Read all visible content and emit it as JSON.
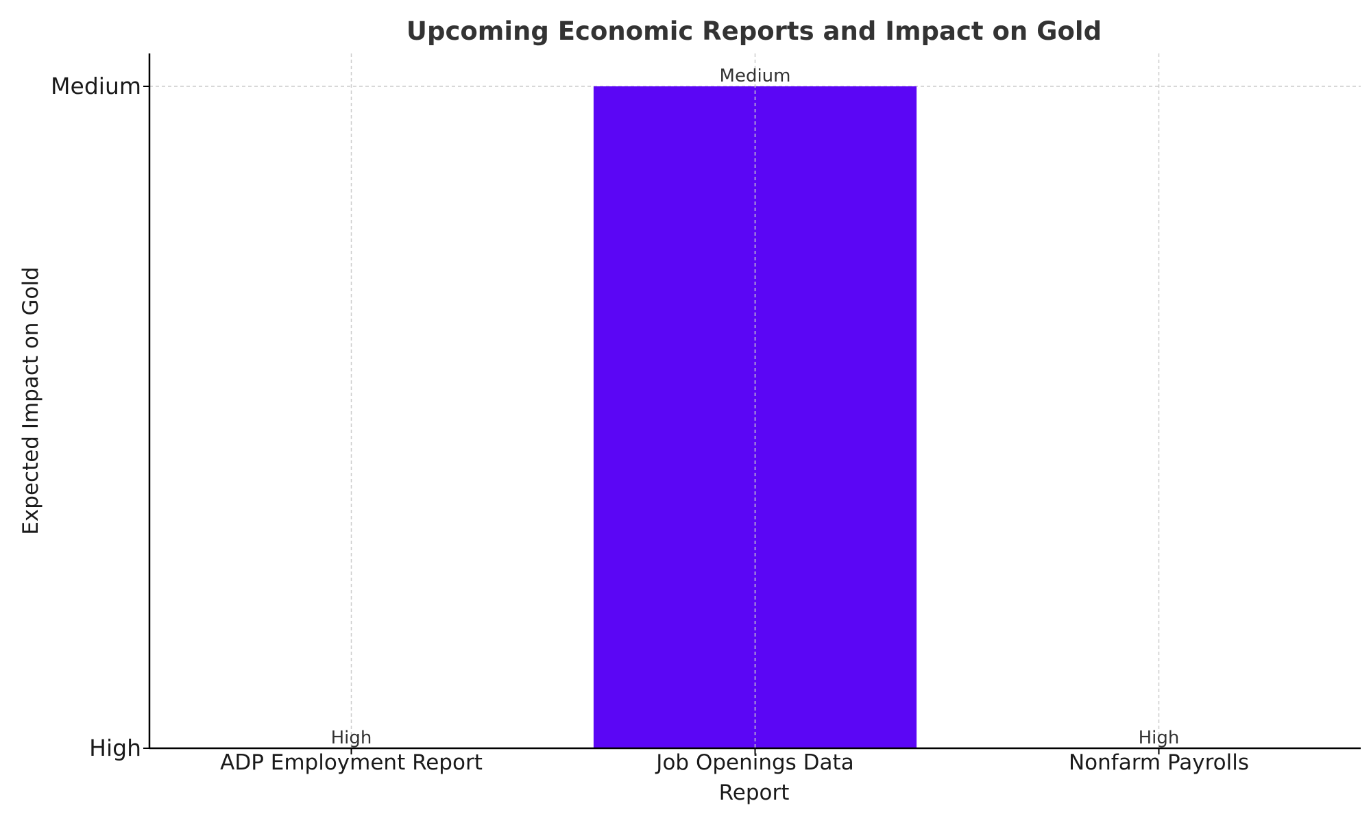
{
  "chart_data": {
    "type": "bar",
    "title": "Upcoming Economic Reports and Impact on Gold",
    "xlabel": "Report",
    "ylabel": "Expected Impact on Gold",
    "categories": [
      "ADP Employment Report",
      "Job Openings Data",
      "Nonfarm Payrolls"
    ],
    "y_categories": [
      "High",
      "Medium"
    ],
    "values": [
      "High",
      "Medium",
      "High"
    ],
    "data_labels": [
      "High",
      "Medium",
      "High"
    ],
    "grid": true,
    "bar_color": "#5b06f5",
    "text_color": "#333333",
    "axis_color": "#000000",
    "grid_color": "#cccccc"
  }
}
